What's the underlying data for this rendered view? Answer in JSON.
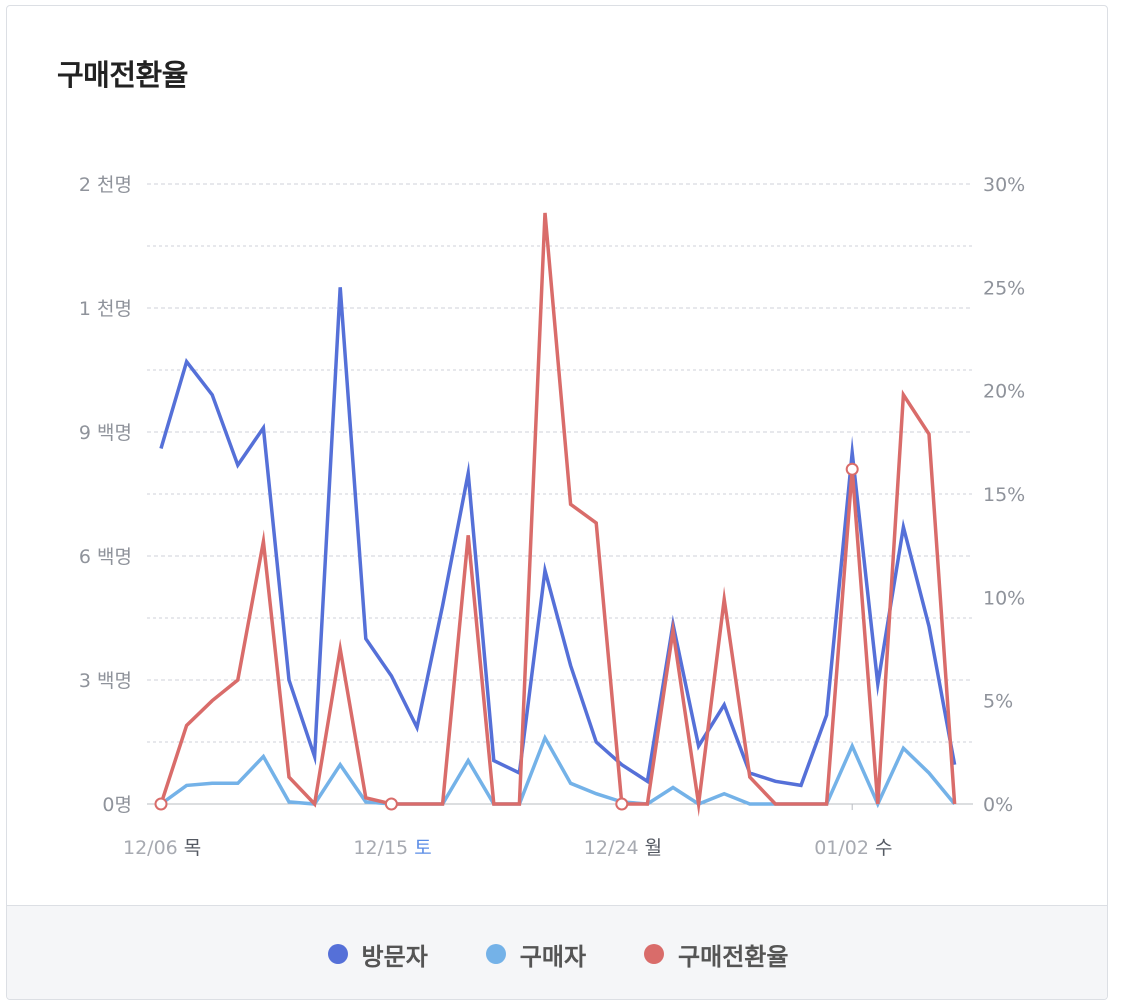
{
  "title": "구매전환율",
  "colors": {
    "visitors": "#5570d8",
    "buyers": "#74b2e8",
    "conversion": "#d96c6a",
    "grid": "#cfd2d8",
    "axis_text": "#8f939b",
    "saturday": "#5b8de6",
    "weekday": "#555a63"
  },
  "legend": [
    {
      "label": "방문자",
      "color": "#5570d8"
    },
    {
      "label": "구매자",
      "color": "#74b2e8"
    },
    {
      "label": "구매전환율",
      "color": "#d96c6a"
    }
  ],
  "chart_data": {
    "type": "line",
    "title": "구매전환율",
    "x": [
      "12/06",
      "12/07",
      "12/08",
      "12/09",
      "12/10",
      "12/11",
      "12/12",
      "12/13",
      "12/14",
      "12/15",
      "12/16",
      "12/17",
      "12/18",
      "12/19",
      "12/20",
      "12/21",
      "12/22",
      "12/23",
      "12/24",
      "12/25",
      "12/26",
      "12/27",
      "12/28",
      "12/29",
      "12/30",
      "12/31",
      "01/01",
      "01/02",
      "01/03",
      "01/04",
      "01/05",
      "01/06",
      "01/07"
    ],
    "x_ticks": [
      {
        "date": "12/06",
        "day": "목",
        "saturday": false
      },
      {
        "date": "12/15",
        "day": "토",
        "saturday": true
      },
      {
        "date": "12/24",
        "day": "월",
        "saturday": false
      },
      {
        "date": "01/02",
        "day": "수",
        "saturday": false
      }
    ],
    "left_axis": {
      "ticks": [
        0,
        300,
        600,
        900,
        1200,
        1500
      ],
      "tick_labels": [
        "0명",
        "3 백명",
        "6 백명",
        "9 백명",
        "1 천명",
        "2 천명"
      ],
      "ylim": [
        0,
        1500
      ]
    },
    "right_axis": {
      "ticks": [
        0,
        5,
        10,
        15,
        20,
        25,
        30
      ],
      "tick_labels": [
        "0%",
        "5%",
        "10%",
        "15%",
        "20%",
        "25%",
        "30%"
      ],
      "ylim": [
        0,
        30
      ]
    },
    "series": [
      {
        "name": "방문자",
        "axis": "left",
        "values": [
          860,
          1070,
          990,
          820,
          910,
          300,
          115,
          1250,
          400,
          310,
          185,
          480,
          800,
          105,
          75,
          565,
          335,
          150,
          95,
          55,
          435,
          140,
          240,
          75,
          55,
          45,
          215,
          850,
          290,
          670,
          430,
          95,
          null
        ]
      },
      {
        "name": "구매자",
        "axis": "left",
        "values": [
          0,
          45,
          50,
          50,
          115,
          5,
          0,
          95,
          5,
          0,
          0,
          0,
          105,
          0,
          0,
          160,
          50,
          25,
          5,
          0,
          40,
          0,
          25,
          0,
          0,
          0,
          0,
          140,
          0,
          135,
          75,
          0,
          null
        ]
      },
      {
        "name": "구매전환율",
        "axis": "right",
        "values": [
          0,
          3.8,
          5.0,
          6.0,
          12.7,
          1.3,
          0,
          7.5,
          0.3,
          0,
          0,
          0,
          13.0,
          0,
          0,
          28.6,
          14.5,
          13.6,
          0,
          0,
          8.4,
          0,
          9.9,
          1.3,
          0,
          0,
          0,
          16.2,
          0,
          19.8,
          17.9,
          0,
          null
        ],
        "markers": [
          0,
          9,
          18,
          27
        ]
      }
    ],
    "grid": true,
    "legend_position": "bottom"
  }
}
